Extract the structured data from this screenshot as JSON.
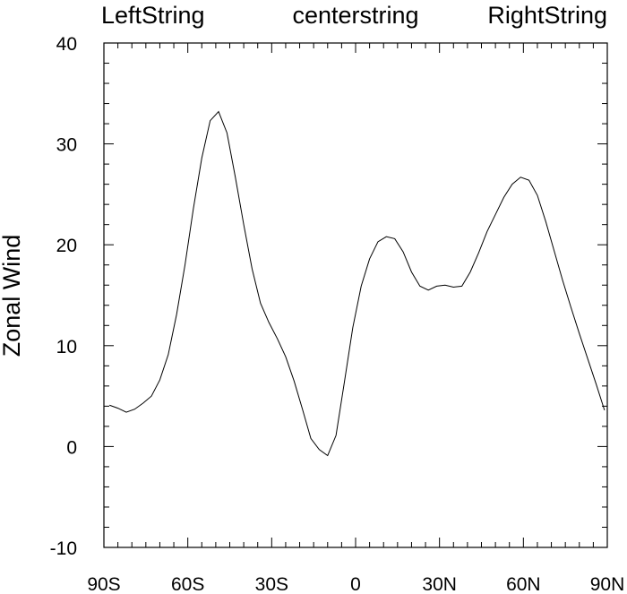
{
  "chart_data": {
    "type": "line",
    "title_left": "LeftString",
    "title_center": "centerstring",
    "title_right": "RightString",
    "xlabel": "",
    "ylabel": "Zonal Wind",
    "xlim": [
      -90,
      90
    ],
    "ylim": [
      -10,
      40
    ],
    "x_ticks": [
      {
        "value": -90,
        "label": "90S"
      },
      {
        "value": -60,
        "label": "60S"
      },
      {
        "value": -30,
        "label": "30S"
      },
      {
        "value": 0,
        "label": "0"
      },
      {
        "value": 30,
        "label": "30N"
      },
      {
        "value": 60,
        "label": "60N"
      },
      {
        "value": 90,
        "label": "90N"
      }
    ],
    "y_ticks": [
      {
        "value": -10,
        "label": "-10"
      },
      {
        "value": 0,
        "label": "0"
      },
      {
        "value": 10,
        "label": "10"
      },
      {
        "value": 20,
        "label": "20"
      },
      {
        "value": 30,
        "label": "30"
      },
      {
        "value": 40,
        "label": "40"
      }
    ],
    "x_minor_step": 5,
    "y_minor_step": 2,
    "grid": false,
    "line_color": "#000000",
    "series": [
      {
        "x": [
          -88,
          -85,
          -82,
          -79,
          -76,
          -73,
          -70,
          -67,
          -64,
          -61,
          -58,
          -55,
          -52,
          -49,
          -46,
          -43,
          -40,
          -37,
          -34,
          -31,
          -28,
          -25,
          -22,
          -19,
          -16,
          -13,
          -10,
          -7,
          -4,
          -1,
          2,
          5,
          8,
          11,
          14,
          17,
          20,
          23,
          26,
          29,
          32,
          35,
          38,
          41,
          44,
          47,
          50,
          53,
          56,
          59,
          62,
          65,
          68,
          71,
          74,
          77,
          80,
          83,
          86,
          89
        ],
        "y": [
          4.1,
          3.8,
          3.4,
          3.7,
          4.3,
          5.0,
          6.6,
          9.1,
          13.1,
          18.0,
          23.6,
          28.6,
          32.3,
          33.2,
          31.1,
          26.7,
          22.0,
          17.6,
          14.2,
          12.3,
          10.7,
          8.9,
          6.5,
          3.7,
          0.8,
          -0.3,
          -0.9,
          1.1,
          6.4,
          11.8,
          15.9,
          18.6,
          20.3,
          20.8,
          20.6,
          19.3,
          17.3,
          15.9,
          15.5,
          15.9,
          16.0,
          15.8,
          15.9,
          17.3,
          19.2,
          21.3,
          23.0,
          24.7,
          26.0,
          26.7,
          26.4,
          24.9,
          22.3,
          19.4,
          16.5,
          13.8,
          11.2,
          8.7,
          6.2,
          3.6
        ]
      }
    ]
  }
}
